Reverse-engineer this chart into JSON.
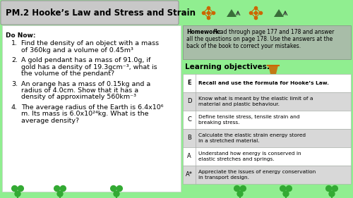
{
  "title": "PM.2 Hooke’s Law and Stress and Strain",
  "bg_color": "#90EE90",
  "title_bg": "#c8c8c8",
  "homework_bg": "#a8bda8",
  "do_now_items": [
    [
      "Find the density of an object with a mass",
      "of 360kg and a volume of 0.45m³"
    ],
    [
      "A gold pendant has a mass of 91.0g, if",
      "gold has a density of 19.3gcm⁻³, what is",
      "the volume of the pendant?"
    ],
    [
      "An orange has a mass of 0.15kg and a",
      "radius of 4.0cm. Show that it has a",
      "density of approximately 560km⁻³"
    ],
    [
      "The average radius of the Earth is 6.4x10⁶",
      "m. Its mass is 6.0x10²⁴kg. What is the",
      "average density?"
    ]
  ],
  "learning_objectives_title": "Learning objectives:",
  "objectives": [
    [
      "E",
      "Recall and use the formula for Hooke’s Law.",
      true
    ],
    [
      "D",
      "Know what is meant by the elastic limit of a material and plastic behaviour.",
      false
    ],
    [
      "C",
      "Define tensile stress, tensile strain and breaking stress.",
      false
    ],
    [
      "B",
      "Calculate the elastic strain energy stored in a stretched material.",
      false
    ],
    [
      "A",
      "Understand how energy is conserved in elastic stretches and springs.",
      false
    ],
    [
      "A*",
      "Appreciate the issues of energy conservation in transport design.",
      false
    ]
  ],
  "white_color": "#ffffff",
  "table_alt_bg": "#d8d8d8",
  "homework_line1": "Homework:",
  "homework_line2": " Read through page 177 and 178 and answer",
  "homework_line3": "all the questions on page 178. Use the answers at the",
  "homework_line4": "back of the book to correct your mistakes."
}
